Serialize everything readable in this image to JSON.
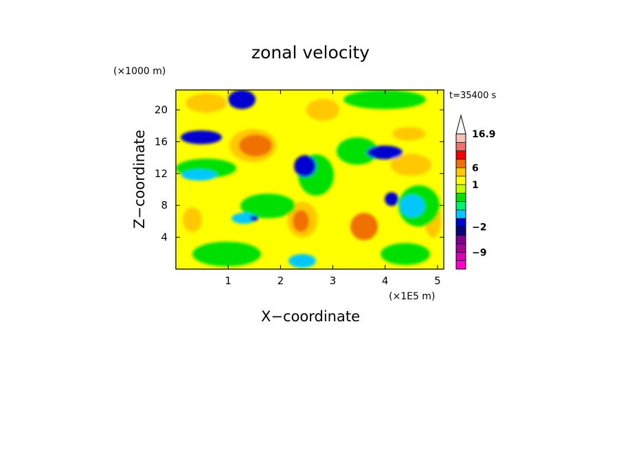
{
  "chart_data": {
    "type": "heatmap",
    "title": "zonal velocity",
    "xlabel": "X−coordinate",
    "ylabel": "Z−coordinate",
    "x_unit_label": "(×1E5 m)",
    "y_unit_label": "(×1000 m)",
    "time_label": "t=35400 s",
    "xlim": [
      0,
      5.12
    ],
    "ylim": [
      0,
      22.5
    ],
    "x_ticks": [
      1,
      2,
      3,
      4,
      5
    ],
    "x_tick_labels": [
      "1",
      "2",
      "3",
      "4",
      "5"
    ],
    "y_ticks": [
      4,
      8,
      12,
      16,
      20
    ],
    "y_tick_labels": [
      "4",
      "8",
      "12",
      "16",
      "20"
    ],
    "colorbar": {
      "levels": [
        -16.9,
        -12,
        -9,
        -6,
        -4,
        -2,
        -1,
        -0.5,
        0,
        0.5,
        1,
        3,
        6,
        9,
        12,
        16.9
      ],
      "colors": [
        "#ff00cc",
        "#d900b0",
        "#a40098",
        "#7b0090",
        "#0a007a",
        "#0000d0",
        "#00c8ff",
        "#00f070",
        "#00e000",
        "#c0ff00",
        "#ffff00",
        "#ffc800",
        "#f07000",
        "#f00000",
        "#f07070",
        "#f8c0b8"
      ],
      "extend_max": true,
      "tick_values": [
        16.9,
        6,
        1,
        -2,
        -9
      ],
      "tick_labels": [
        "16.9",
        "6",
        "1",
        "−2",
        "−9"
      ]
    },
    "grid": false,
    "legend": "right colorbar"
  }
}
